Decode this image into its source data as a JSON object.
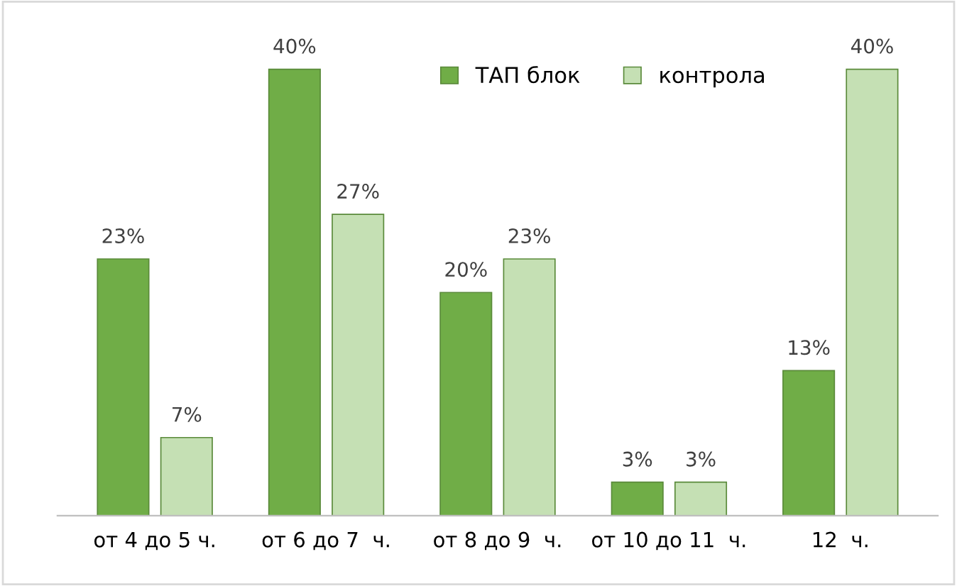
{
  "chart_data": {
    "type": "bar",
    "categories": [
      "от 4 до 5 ч.",
      "от 6 до 7  ч.",
      "от 8 до 9  ч.",
      "от 10 до 11  ч.",
      "12  ч."
    ],
    "series": [
      {
        "name": "ТАП блок",
        "color": "#70ad47",
        "values": [
          23,
          40,
          20,
          3,
          13
        ],
        "value_labels": [
          "23%",
          "40%",
          "20%",
          "3%",
          "13%"
        ]
      },
      {
        "name": "контрола",
        "color": "#c5e0b4",
        "values": [
          7,
          27,
          23,
          3,
          40
        ],
        "value_labels": [
          "7%",
          "27%",
          "23%",
          "3%",
          "40%"
        ]
      }
    ],
    "legend": "top",
    "grid": false
  }
}
